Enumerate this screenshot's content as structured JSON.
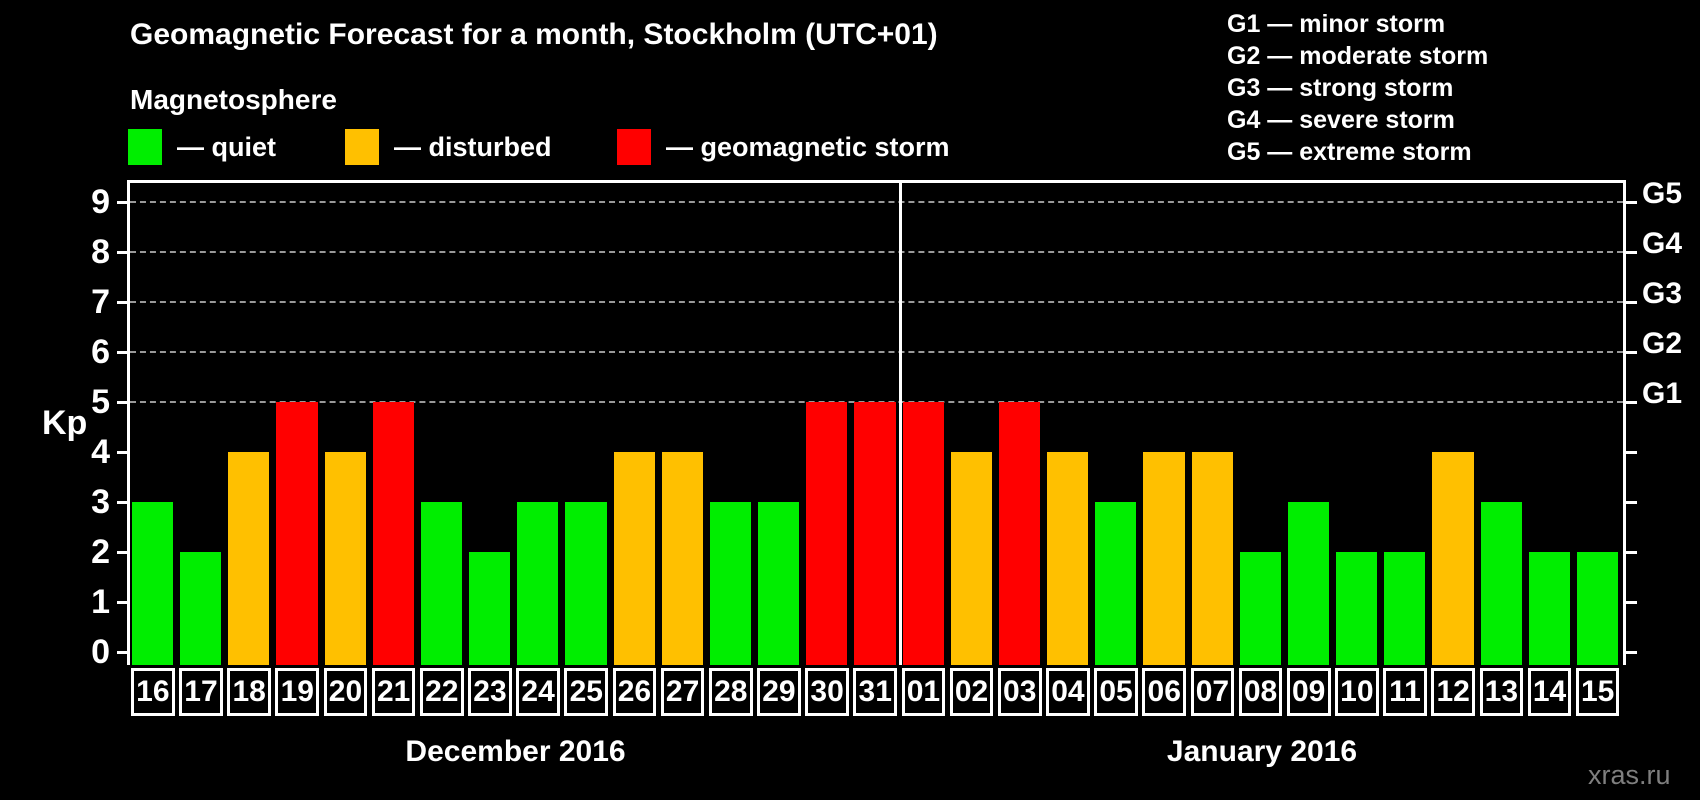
{
  "header": {
    "title": "Geomagnetic Forecast for a month, Stockholm (UTC+01)",
    "subtitle": "Magnetosphere"
  },
  "legend": {
    "items": [
      {
        "name": "quiet",
        "label": "— quiet",
        "color": "#00ee00"
      },
      {
        "name": "disturbed",
        "label": "— disturbed",
        "color": "#ffc000"
      },
      {
        "name": "storm",
        "label": "— geomagnetic storm",
        "color": "#ff0000"
      }
    ]
  },
  "g_scale_legend": {
    "items": [
      "G1 — minor storm",
      "G2 — moderate storm",
      "G3 — strong storm",
      "G4 — severe storm",
      "G5 — extreme storm"
    ]
  },
  "watermark": "xras.ru",
  "chart_data": {
    "type": "bar",
    "ylabel": "Kp",
    "ylim": [
      0,
      9
    ],
    "yticks": [
      0,
      1,
      2,
      3,
      4,
      5,
      6,
      7,
      8,
      9
    ],
    "gridlines_at": [
      5,
      6,
      7,
      8,
      9
    ],
    "grid_style": "dashed-horizontal",
    "legend_position": "top",
    "right_axis_labels": [
      {
        "kp": 5,
        "label": "G1"
      },
      {
        "kp": 6,
        "label": "G2"
      },
      {
        "kp": 7,
        "label": "G3"
      },
      {
        "kp": 8,
        "label": "G4"
      },
      {
        "kp": 9,
        "label": "G5"
      }
    ],
    "status_colors": {
      "quiet": "#00ee00",
      "disturbed": "#ffc000",
      "storm": "#ff0000"
    },
    "groups": [
      {
        "label": "December 2016",
        "days": [
          {
            "day": "16",
            "kp": 3,
            "status": "quiet"
          },
          {
            "day": "17",
            "kp": 2,
            "status": "quiet"
          },
          {
            "day": "18",
            "kp": 4,
            "status": "disturbed"
          },
          {
            "day": "19",
            "kp": 5,
            "status": "storm"
          },
          {
            "day": "20",
            "kp": 4,
            "status": "disturbed"
          },
          {
            "day": "21",
            "kp": 5,
            "status": "storm"
          },
          {
            "day": "22",
            "kp": 3,
            "status": "quiet"
          },
          {
            "day": "23",
            "kp": 2,
            "status": "quiet"
          },
          {
            "day": "24",
            "kp": 3,
            "status": "quiet"
          },
          {
            "day": "25",
            "kp": 3,
            "status": "quiet"
          },
          {
            "day": "26",
            "kp": 4,
            "status": "disturbed"
          },
          {
            "day": "27",
            "kp": 4,
            "status": "disturbed"
          },
          {
            "day": "28",
            "kp": 3,
            "status": "quiet"
          },
          {
            "day": "29",
            "kp": 3,
            "status": "quiet"
          },
          {
            "day": "30",
            "kp": 5,
            "status": "storm"
          },
          {
            "day": "31",
            "kp": 5,
            "status": "storm"
          }
        ]
      },
      {
        "label": "January 2016",
        "days": [
          {
            "day": "01",
            "kp": 5,
            "status": "storm"
          },
          {
            "day": "02",
            "kp": 4,
            "status": "disturbed"
          },
          {
            "day": "03",
            "kp": 5,
            "status": "storm"
          },
          {
            "day": "04",
            "kp": 4,
            "status": "disturbed"
          },
          {
            "day": "05",
            "kp": 3,
            "status": "quiet"
          },
          {
            "day": "06",
            "kp": 4,
            "status": "disturbed"
          },
          {
            "day": "07",
            "kp": 4,
            "status": "disturbed"
          },
          {
            "day": "08",
            "kp": 2,
            "status": "quiet"
          },
          {
            "day": "09",
            "kp": 3,
            "status": "quiet"
          },
          {
            "day": "10",
            "kp": 2,
            "status": "quiet"
          },
          {
            "day": "11",
            "kp": 2,
            "status": "quiet"
          },
          {
            "day": "12",
            "kp": 4,
            "status": "disturbed"
          },
          {
            "day": "13",
            "kp": 3,
            "status": "quiet"
          },
          {
            "day": "14",
            "kp": 2,
            "status": "quiet"
          },
          {
            "day": "15",
            "kp": 2,
            "status": "quiet"
          }
        ]
      }
    ]
  }
}
